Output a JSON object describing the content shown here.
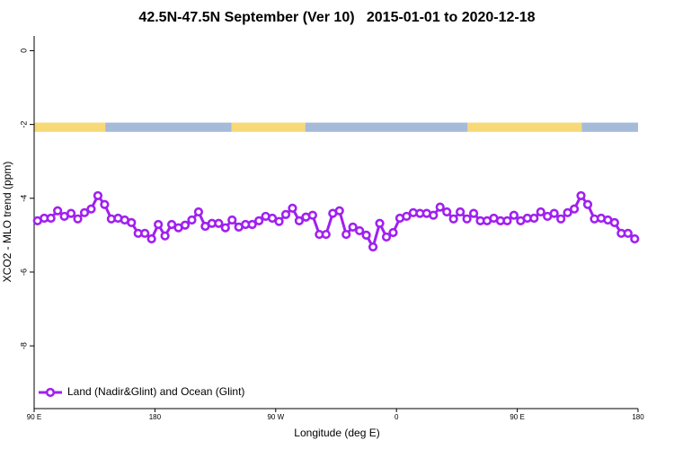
{
  "chart_data": {
    "type": "line",
    "title": "42.5N-47.5N September (Ver 10)   2015-01-01 to 2020-12-18",
    "xlabel": "Longitude (deg E)",
    "ylabel": "XCO2 - MLO trend (ppm)",
    "xlim": [
      90,
      540
    ],
    "ylim": [
      -9.7,
      0.4
    ],
    "xticks": [
      {
        "value": 90,
        "label": "90 E"
      },
      180,
      {
        "value": 270,
        "label": "90 W"
      },
      {
        "value": 360,
        "label": "0"
      },
      {
        "value": 450,
        "label": "90 E"
      },
      {
        "value": 540,
        "label": "180"
      }
    ],
    "yticks": [
      0,
      -2,
      -4,
      -6,
      -8
    ],
    "legend": "lower left",
    "band": {
      "range": [
        -2.2,
        -1.95
      ],
      "segments": [
        {
          "x": [
            90,
            143
          ],
          "color": "#f8d978"
        },
        {
          "x": [
            143,
            237
          ],
          "color": "#a6bad9"
        },
        {
          "x": [
            237,
            292
          ],
          "color": "#f8d978"
        },
        {
          "x": [
            292,
            413
          ],
          "color": "#a6bad9"
        },
        {
          "x": [
            413,
            498
          ],
          "color": "#f8d978"
        },
        {
          "x": [
            498,
            540
          ],
          "color": "#a6bad9"
        }
      ]
    },
    "x": [
      92.5,
      97.5,
      102.5,
      107.5,
      112.5,
      117.5,
      122.5,
      127.5,
      132.5,
      137.5,
      142.5,
      147.5,
      152.5,
      157.5,
      162.5,
      167.5,
      172.5,
      177.5,
      182.5,
      187.5,
      192.5,
      197.5,
      202.5,
      207.5,
      212.5,
      217.5,
      222.5,
      227.5,
      232.5,
      237.5,
      242.5,
      247.5,
      252.5,
      257.5,
      262.5,
      267.5,
      272.5,
      277.5,
      282.5,
      287.5,
      292.5,
      297.5,
      302.5,
      307.5,
      312.5,
      317.5,
      322.5,
      327.5,
      332.5,
      337.5,
      342.5,
      347.5,
      352.5,
      357.5,
      362.5,
      367.5,
      372.5,
      377.5,
      382.5,
      387.5,
      392.5,
      397.5,
      402.5,
      407.5,
      412.5,
      417.5,
      422.5,
      427.5,
      432.5,
      437.5,
      442.5,
      447.5,
      452.5,
      457.5,
      462.5,
      467.5,
      472.5,
      477.5,
      482.5,
      487.5,
      492.5,
      497.5,
      502.5,
      507.5,
      512.5,
      517.5,
      522.5,
      527.5,
      532.5,
      537.5
    ],
    "series": [
      {
        "name": "Land (Nadir&Glint) and Ocean (Glint)",
        "color": "#a020f0",
        "values": [
          -4.61,
          -4.54,
          -4.54,
          -4.34,
          -4.49,
          -4.41,
          -4.56,
          -4.39,
          -4.29,
          -3.93,
          -4.17,
          -4.56,
          -4.54,
          -4.59,
          -4.66,
          -4.95,
          -4.95,
          -5.1,
          -4.71,
          -5.02,
          -4.71,
          -4.8,
          -4.73,
          -4.59,
          -4.37,
          -4.76,
          -4.68,
          -4.68,
          -4.8,
          -4.59,
          -4.78,
          -4.71,
          -4.71,
          -4.61,
          -4.49,
          -4.54,
          -4.63,
          -4.44,
          -4.27,
          -4.61,
          -4.51,
          -4.46,
          -4.98,
          -4.98,
          -4.41,
          -4.34,
          -4.98,
          -4.78,
          -4.88,
          -5.0,
          -5.32,
          -4.68,
          -5.05,
          -4.93,
          -4.54,
          -4.49,
          -4.39,
          -4.41,
          -4.41,
          -4.46,
          -4.24,
          -4.37,
          -4.56,
          -4.37,
          -4.56,
          -4.41,
          -4.61,
          -4.61,
          -4.54,
          -4.61,
          -4.61,
          -4.46,
          -4.61,
          -4.54,
          -4.54,
          -4.37,
          -4.49,
          -4.41,
          -4.56,
          -4.39,
          -4.29,
          -3.93,
          -4.17,
          -4.56,
          -4.54,
          -4.59,
          -4.66,
          -4.95,
          -4.95,
          -5.1
        ]
      }
    ]
  }
}
